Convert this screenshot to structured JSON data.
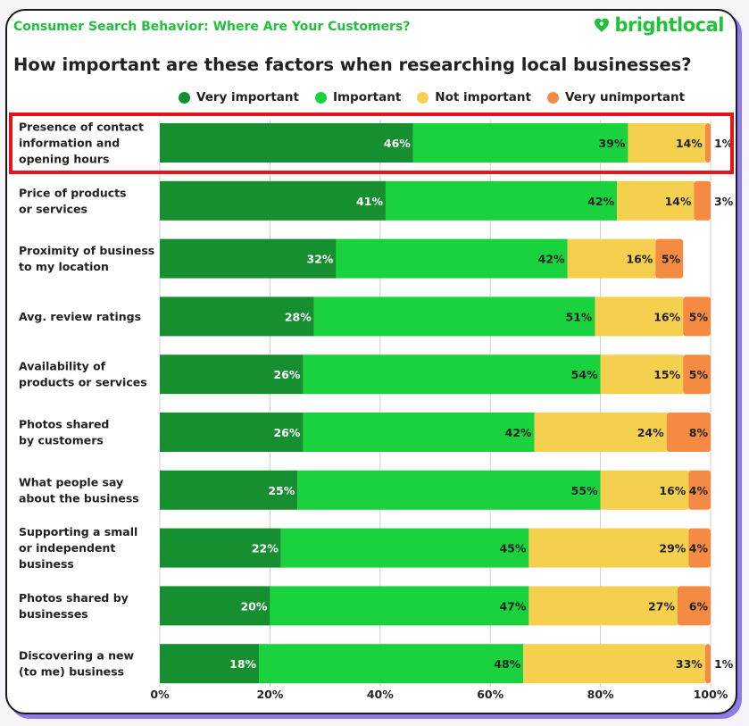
{
  "header": {
    "kicker": "Consumer Search Behavior: Where Are Your Customers?",
    "brand": "brightlocal"
  },
  "chart_data": {
    "type": "bar",
    "orientation": "horizontal",
    "stacked": true,
    "title": "How important are these factors when researching local businesses?",
    "legend_position": "top",
    "categories": [
      [
        "Presence of contact",
        "information and",
        "opening hours"
      ],
      [
        "Price of products",
        "or services"
      ],
      [
        "Proximity of business",
        "to my location"
      ],
      [
        "Avg. review ratings"
      ],
      [
        "Availability of",
        "products or services"
      ],
      [
        "Photos shared",
        "by customers"
      ],
      [
        "What people say",
        "about the business"
      ],
      [
        "Supporting a small",
        "or independent",
        "business"
      ],
      [
        "Photos shared by",
        "businesses"
      ],
      [
        "Discovering a new",
        "(to me) business"
      ]
    ],
    "series": [
      {
        "name": "Very important",
        "color": "#168f30",
        "values": [
          46,
          41,
          32,
          28,
          26,
          26,
          25,
          22,
          20,
          18
        ]
      },
      {
        "name": "Important",
        "color": "#19d23e",
        "values": [
          39,
          42,
          42,
          51,
          54,
          42,
          55,
          45,
          47,
          48
        ]
      },
      {
        "name": "Not important",
        "color": "#f4d04e",
        "values": [
          14,
          14,
          16,
          16,
          15,
          24,
          16,
          29,
          27,
          33
        ]
      },
      {
        "name": "Very unimportant",
        "color": "#f58a42",
        "values": [
          1,
          3,
          5,
          5,
          5,
          8,
          4,
          4,
          6,
          1
        ]
      }
    ],
    "x_ticks": [
      "0%",
      "20%",
      "40%",
      "60%",
      "80%",
      "100%"
    ],
    "xlim": [
      0,
      100
    ],
    "highlighted_category": 0,
    "grid": true
  }
}
